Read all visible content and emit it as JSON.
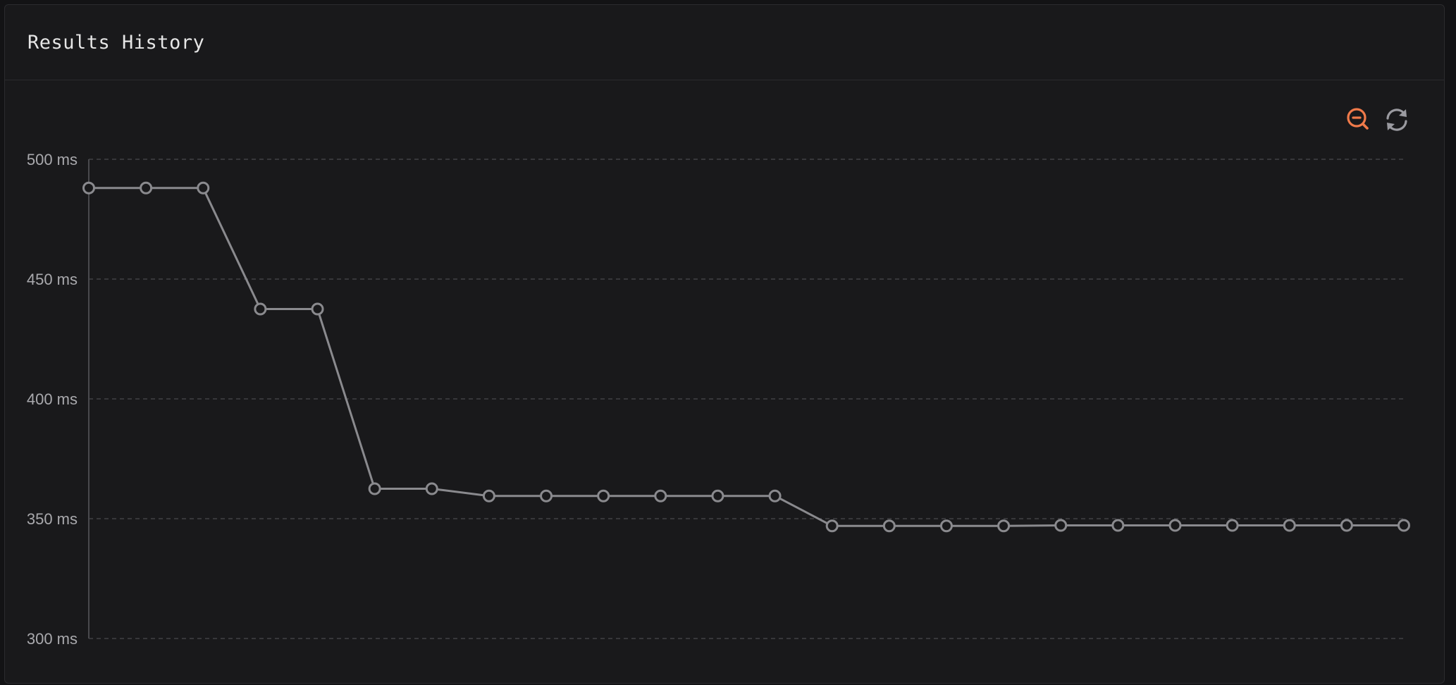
{
  "panel": {
    "title": "Results History"
  },
  "toolbar": {
    "zoom_out_icon": "zoom-out-icon",
    "refresh_icon": "refresh-icon",
    "zoom_color": "#f07a4a",
    "refresh_color": "#9a9aa0"
  },
  "colors": {
    "background": "#19191b",
    "grid": "#4a4a4e",
    "line": "#8a8a8e",
    "axis": "#4a4a4e"
  },
  "chart_data": {
    "type": "line",
    "title": "",
    "xlabel": "",
    "ylabel": "",
    "ylim": [
      300,
      500
    ],
    "yticks": [
      500,
      450,
      400,
      350,
      300
    ],
    "ytick_labels": [
      "500 ms",
      "450 ms",
      "400 ms",
      "350 ms",
      "300 ms"
    ],
    "grid": true,
    "series": [
      {
        "values": [
          488,
          488,
          488,
          437.5,
          437.5,
          362.5,
          362.5,
          359.5,
          359.5,
          359.5,
          359.5,
          359.5,
          359.5,
          347,
          347,
          347,
          347,
          347.2,
          347.2,
          347.2,
          347.2,
          347.2,
          347.2,
          347.2
        ]
      }
    ]
  }
}
